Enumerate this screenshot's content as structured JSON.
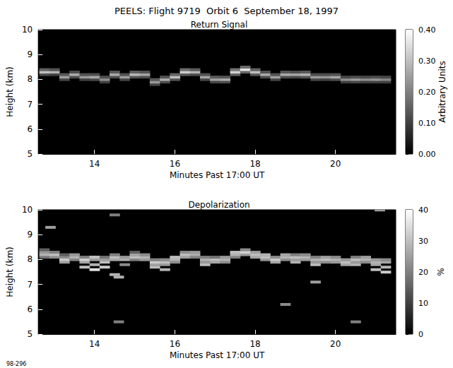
{
  "title": "PEELS: Flight 9719  Orbit 6  September 18, 1997",
  "annotation": "98-296",
  "chart_data": [
    {
      "type": "heatmap",
      "title": "Return Signal",
      "x_label": "Minutes Past 17:00 UT",
      "y_label": "Height (km)",
      "xlim": [
        12.6,
        21.5
      ],
      "xticks": [
        14,
        16,
        18,
        20
      ],
      "ylim": [
        5,
        10
      ],
      "yticks": [
        5,
        6,
        7,
        8,
        9,
        10
      ],
      "cell_size": [
        0.25,
        0.1
      ],
      "colorbar": {
        "label": "Arbitrary Units",
        "range": [
          0,
          0.4
        ],
        "ticks": [
          {
            "value": 0,
            "label": "0.00"
          },
          {
            "value": 0.1,
            "label": "0.10"
          },
          {
            "value": 0.2,
            "label": "0.20"
          },
          {
            "value": 0.3,
            "label": "0.30"
          },
          {
            "value": 0.4,
            "label": "0.40"
          }
        ]
      },
      "cells": [
        [
          12.75,
          8.2,
          0.12
        ],
        [
          12.75,
          8.3,
          0.3
        ],
        [
          12.75,
          8.4,
          0.15
        ],
        [
          13.0,
          8.2,
          0.1
        ],
        [
          13.0,
          8.3,
          0.28
        ],
        [
          13.0,
          8.4,
          0.13
        ],
        [
          13.25,
          8.0,
          0.11
        ],
        [
          13.25,
          8.1,
          0.25
        ],
        [
          13.25,
          8.2,
          0.14
        ],
        [
          13.5,
          8.1,
          0.12
        ],
        [
          13.5,
          8.2,
          0.27
        ],
        [
          13.5,
          8.3,
          0.12
        ],
        [
          13.75,
          8.0,
          0.1
        ],
        [
          13.75,
          8.1,
          0.24
        ],
        [
          13.75,
          8.2,
          0.13
        ],
        [
          14.0,
          8.0,
          0.11
        ],
        [
          14.0,
          8.1,
          0.26
        ],
        [
          14.0,
          8.2,
          0.12
        ],
        [
          14.25,
          7.9,
          0.1
        ],
        [
          14.25,
          8.0,
          0.22
        ],
        [
          14.25,
          8.1,
          0.12
        ],
        [
          14.5,
          8.1,
          0.12
        ],
        [
          14.5,
          8.2,
          0.27
        ],
        [
          14.5,
          8.3,
          0.14
        ],
        [
          14.75,
          8.0,
          0.11
        ],
        [
          14.75,
          8.1,
          0.25
        ],
        [
          14.75,
          8.2,
          0.13
        ],
        [
          15.0,
          8.1,
          0.13
        ],
        [
          15.0,
          8.2,
          0.29
        ],
        [
          15.0,
          8.3,
          0.15
        ],
        [
          15.25,
          8.1,
          0.12
        ],
        [
          15.25,
          8.2,
          0.26
        ],
        [
          15.25,
          8.3,
          0.13
        ],
        [
          15.5,
          7.8,
          0.11
        ],
        [
          15.5,
          7.9,
          0.24
        ],
        [
          15.5,
          8.0,
          0.14
        ],
        [
          15.75,
          7.9,
          0.12
        ],
        [
          15.75,
          8.0,
          0.27
        ],
        [
          15.75,
          8.1,
          0.13
        ],
        [
          16.0,
          8.0,
          0.13
        ],
        [
          16.0,
          8.1,
          0.3
        ],
        [
          16.0,
          8.2,
          0.16
        ],
        [
          16.25,
          8.2,
          0.14
        ],
        [
          16.25,
          8.3,
          0.32
        ],
        [
          16.25,
          8.4,
          0.17
        ],
        [
          16.5,
          8.2,
          0.12
        ],
        [
          16.5,
          8.3,
          0.28
        ],
        [
          16.5,
          8.4,
          0.14
        ],
        [
          16.75,
          8.0,
          0.11
        ],
        [
          16.75,
          8.1,
          0.26
        ],
        [
          16.75,
          8.2,
          0.13
        ],
        [
          17.0,
          7.9,
          0.11
        ],
        [
          17.0,
          8.0,
          0.25
        ],
        [
          17.0,
          8.1,
          0.14
        ],
        [
          17.25,
          7.9,
          0.12
        ],
        [
          17.25,
          8.0,
          0.27
        ],
        [
          17.25,
          8.1,
          0.13
        ],
        [
          17.5,
          8.2,
          0.15
        ],
        [
          17.5,
          8.3,
          0.33
        ],
        [
          17.5,
          8.4,
          0.18
        ],
        [
          17.75,
          8.3,
          0.16
        ],
        [
          17.75,
          8.4,
          0.36
        ],
        [
          17.75,
          8.5,
          0.17
        ],
        [
          18.0,
          8.2,
          0.14
        ],
        [
          18.0,
          8.3,
          0.3
        ],
        [
          18.0,
          8.4,
          0.15
        ],
        [
          18.25,
          8.1,
          0.12
        ],
        [
          18.25,
          8.2,
          0.27
        ],
        [
          18.25,
          8.3,
          0.13
        ],
        [
          18.5,
          8.0,
          0.11
        ],
        [
          18.5,
          8.1,
          0.25
        ],
        [
          18.5,
          8.2,
          0.13
        ],
        [
          18.75,
          8.1,
          0.12
        ],
        [
          18.75,
          8.2,
          0.27
        ],
        [
          18.75,
          8.3,
          0.14
        ],
        [
          19.0,
          8.1,
          0.11
        ],
        [
          19.0,
          8.2,
          0.26
        ],
        [
          19.0,
          8.3,
          0.12
        ],
        [
          19.25,
          8.1,
          0.13
        ],
        [
          19.25,
          8.2,
          0.28
        ],
        [
          19.25,
          8.3,
          0.14
        ],
        [
          19.5,
          8.0,
          0.11
        ],
        [
          19.5,
          8.1,
          0.24
        ],
        [
          19.5,
          8.2,
          0.12
        ],
        [
          19.75,
          8.0,
          0.1
        ],
        [
          19.75,
          8.1,
          0.23
        ],
        [
          19.75,
          8.2,
          0.12
        ],
        [
          20.0,
          8.0,
          0.12
        ],
        [
          20.0,
          8.1,
          0.26
        ],
        [
          20.0,
          8.2,
          0.13
        ],
        [
          20.25,
          7.9,
          0.1
        ],
        [
          20.25,
          8.0,
          0.22
        ],
        [
          20.25,
          8.1,
          0.11
        ],
        [
          20.5,
          7.9,
          0.11
        ],
        [
          20.5,
          8.0,
          0.24
        ],
        [
          20.5,
          8.1,
          0.12
        ],
        [
          20.75,
          7.9,
          0.1
        ],
        [
          20.75,
          8.0,
          0.22
        ],
        [
          20.75,
          8.1,
          0.11
        ],
        [
          21.0,
          7.9,
          0.1
        ],
        [
          21.0,
          8.0,
          0.23
        ],
        [
          21.0,
          8.1,
          0.12
        ],
        [
          21.25,
          7.9,
          0.1
        ],
        [
          21.25,
          8.0,
          0.21
        ],
        [
          21.25,
          8.1,
          0.11
        ]
      ]
    },
    {
      "type": "heatmap",
      "title": "Depolarization",
      "x_label": "Minutes Past 17:00 UT",
      "y_label": "Height (km)",
      "xlim": [
        12.6,
        21.5
      ],
      "xticks": [
        14,
        16,
        18,
        20
      ],
      "ylim": [
        5,
        10
      ],
      "yticks": [
        5,
        6,
        7,
        8,
        9,
        10
      ],
      "cell_size": [
        0.25,
        0.1
      ],
      "colorbar": {
        "label": "%",
        "range": [
          0,
          40
        ],
        "ticks": [
          0,
          10,
          20,
          30,
          40
        ]
      },
      "cells": [
        [
          12.75,
          8.1,
          18
        ],
        [
          12.75,
          8.2,
          28
        ],
        [
          12.75,
          8.3,
          24
        ],
        [
          12.75,
          8.4,
          15
        ],
        [
          13.0,
          8.1,
          22
        ],
        [
          13.0,
          8.2,
          30
        ],
        [
          13.0,
          8.3,
          20
        ],
        [
          13.25,
          7.9,
          25
        ],
        [
          13.25,
          8.0,
          32
        ],
        [
          13.25,
          8.1,
          22
        ],
        [
          13.25,
          8.2,
          15
        ],
        [
          13.5,
          8.0,
          20
        ],
        [
          13.5,
          8.1,
          28
        ],
        [
          13.5,
          8.2,
          24
        ],
        [
          13.75,
          7.7,
          30
        ],
        [
          13.75,
          7.9,
          26
        ],
        [
          13.75,
          8.0,
          33
        ],
        [
          13.75,
          8.1,
          20
        ],
        [
          14.0,
          7.6,
          35
        ],
        [
          14.0,
          7.8,
          28
        ],
        [
          14.0,
          8.0,
          24
        ],
        [
          14.0,
          8.1,
          30
        ],
        [
          14.25,
          7.7,
          32
        ],
        [
          14.25,
          7.9,
          30
        ],
        [
          14.25,
          8.0,
          25
        ],
        [
          14.25,
          8.1,
          18
        ],
        [
          14.5,
          7.4,
          28
        ],
        [
          14.5,
          8.0,
          26
        ],
        [
          14.5,
          8.1,
          30
        ],
        [
          14.5,
          8.2,
          20
        ],
        [
          14.75,
          7.8,
          22
        ],
        [
          14.75,
          8.0,
          27
        ],
        [
          14.75,
          8.1,
          24
        ],
        [
          15.0,
          8.0,
          20
        ],
        [
          15.0,
          8.1,
          30
        ],
        [
          15.0,
          8.2,
          26
        ],
        [
          15.0,
          8.3,
          15
        ],
        [
          15.25,
          8.0,
          24
        ],
        [
          15.25,
          8.1,
          28
        ],
        [
          15.25,
          8.2,
          22
        ],
        [
          15.5,
          7.7,
          30
        ],
        [
          15.5,
          7.8,
          25
        ],
        [
          15.5,
          7.9,
          32
        ],
        [
          15.5,
          8.0,
          20
        ],
        [
          15.75,
          7.6,
          28
        ],
        [
          15.75,
          7.8,
          24
        ],
        [
          15.75,
          7.9,
          30
        ],
        [
          15.75,
          8.0,
          22
        ],
        [
          16.0,
          7.9,
          22
        ],
        [
          16.0,
          8.0,
          28
        ],
        [
          16.0,
          8.1,
          30
        ],
        [
          16.25,
          8.1,
          25
        ],
        [
          16.25,
          8.2,
          30
        ],
        [
          16.25,
          8.3,
          22
        ],
        [
          16.5,
          8.1,
          20
        ],
        [
          16.5,
          8.2,
          27
        ],
        [
          16.5,
          8.3,
          24
        ],
        [
          16.75,
          7.8,
          30
        ],
        [
          16.75,
          7.9,
          24
        ],
        [
          16.75,
          8.0,
          28
        ],
        [
          16.75,
          8.1,
          20
        ],
        [
          17.0,
          7.9,
          26
        ],
        [
          17.0,
          8.0,
          30
        ],
        [
          17.0,
          8.1,
          18
        ],
        [
          17.25,
          7.9,
          22
        ],
        [
          17.25,
          8.0,
          28
        ],
        [
          17.25,
          8.1,
          24
        ],
        [
          17.5,
          8.1,
          20
        ],
        [
          17.5,
          8.2,
          28
        ],
        [
          17.5,
          8.3,
          30
        ],
        [
          17.75,
          8.2,
          24
        ],
        [
          17.75,
          8.3,
          33
        ],
        [
          17.75,
          8.4,
          22
        ],
        [
          18.0,
          8.1,
          26
        ],
        [
          18.0,
          8.2,
          30
        ],
        [
          18.0,
          8.3,
          25
        ],
        [
          18.25,
          8.0,
          24
        ],
        [
          18.25,
          8.1,
          30
        ],
        [
          18.25,
          8.2,
          28
        ],
        [
          18.5,
          7.9,
          26
        ],
        [
          18.5,
          8.0,
          32
        ],
        [
          18.5,
          8.1,
          22
        ],
        [
          18.75,
          8.0,
          22
        ],
        [
          18.75,
          8.1,
          28
        ],
        [
          18.75,
          8.2,
          26
        ],
        [
          19.0,
          7.9,
          28
        ],
        [
          19.0,
          8.0,
          25
        ],
        [
          19.0,
          8.1,
          30
        ],
        [
          19.0,
          8.2,
          20
        ],
        [
          19.25,
          8.0,
          24
        ],
        [
          19.25,
          8.1,
          28
        ],
        [
          19.25,
          8.2,
          22
        ],
        [
          19.5,
          7.8,
          30
        ],
        [
          19.5,
          7.9,
          24
        ],
        [
          19.5,
          8.0,
          28
        ],
        [
          19.5,
          8.1,
          20
        ],
        [
          19.75,
          7.9,
          22
        ],
        [
          19.75,
          8.0,
          30
        ],
        [
          19.75,
          8.1,
          25
        ],
        [
          20.0,
          7.9,
          24
        ],
        [
          20.0,
          8.0,
          28
        ],
        [
          20.0,
          8.1,
          22
        ],
        [
          20.25,
          7.8,
          26
        ],
        [
          20.25,
          7.9,
          30
        ],
        [
          20.25,
          8.0,
          24
        ],
        [
          20.5,
          7.8,
          28
        ],
        [
          20.5,
          7.9,
          24
        ],
        [
          20.5,
          8.0,
          30
        ],
        [
          20.5,
          8.1,
          20
        ],
        [
          20.75,
          7.9,
          22
        ],
        [
          20.75,
          8.0,
          28
        ],
        [
          20.75,
          8.1,
          25
        ],
        [
          21.0,
          7.6,
          30
        ],
        [
          21.0,
          7.8,
          26
        ],
        [
          21.0,
          7.9,
          28
        ],
        [
          21.0,
          8.0,
          24
        ],
        [
          21.25,
          7.5,
          32
        ],
        [
          21.25,
          7.7,
          28
        ],
        [
          21.25,
          7.9,
          26
        ],
        [
          21.25,
          8.0,
          22
        ],
        [
          12.9,
          9.3,
          25
        ],
        [
          14.5,
          9.8,
          20
        ],
        [
          14.6,
          5.5,
          20
        ],
        [
          14.6,
          7.3,
          28
        ],
        [
          18.75,
          6.2,
          22
        ],
        [
          19.5,
          7.1,
          25
        ],
        [
          20.5,
          5.5,
          20
        ],
        [
          21.1,
          10.0,
          25
        ]
      ]
    }
  ]
}
